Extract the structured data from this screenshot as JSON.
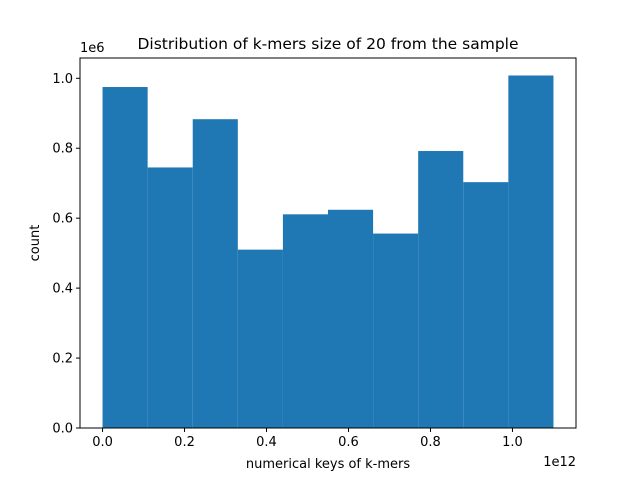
{
  "chart_data": {
    "type": "bar",
    "title": "Distribution of k-mers size of 20 from the sample",
    "xlabel": "numerical keys of k-mers",
    "ylabel": "count",
    "x_offset_text": "1e12",
    "y_offset_text": "1e6",
    "bin_edges": [
      0.0,
      0.11,
      0.22,
      0.33,
      0.44,
      0.55,
      0.66,
      0.77,
      0.88,
      0.99,
      1.1
    ],
    "values": [
      0.975,
      0.745,
      0.883,
      0.51,
      0.611,
      0.624,
      0.556,
      0.792,
      0.703,
      1.008
    ],
    "xlim": [
      -0.055,
      1.155
    ],
    "ylim": [
      0,
      1.058
    ],
    "xticks": [
      0.0,
      0.2,
      0.4,
      0.6,
      0.8,
      1.0
    ],
    "xtick_labels": [
      "0.0",
      "0.2",
      "0.4",
      "0.6",
      "0.8",
      "1.0"
    ],
    "yticks": [
      0.0,
      0.2,
      0.4,
      0.6,
      0.8,
      1.0
    ],
    "ytick_labels": [
      "0.0",
      "0.2",
      "0.4",
      "0.6",
      "0.8",
      "1.0"
    ],
    "bar_color": "#1f77b4",
    "grid": false,
    "legend": "none"
  }
}
